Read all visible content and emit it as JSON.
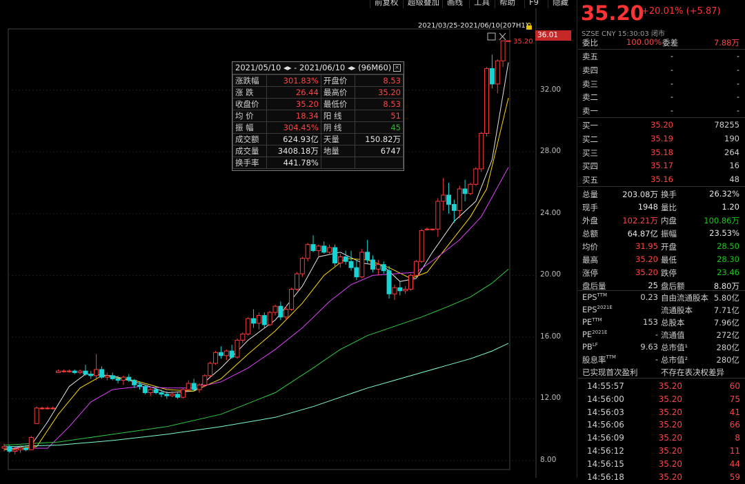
{
  "toolbar": {
    "buttons": [
      "前复权",
      "超级叠加",
      "画线",
      "工具",
      "帮助",
      "F9",
      "隐藏"
    ]
  },
  "chart": {
    "range_label": "2021/03/25-2021/06/10(207H1)",
    "current_price_tag": "36.01",
    "last_price_label": "35.20",
    "y_ticks": [
      "32.00",
      "28.00",
      "24.00",
      "20.00",
      "16.00",
      "12.00",
      "8.00"
    ],
    "colors": {
      "up": "#ff3b3b",
      "down": "#19d3d3",
      "ma5": "#e6e6e6",
      "ma10": "#ffd700",
      "ma20": "#e040fb",
      "ma60": "#2ecc40",
      "ma120": "#7fffd4"
    }
  },
  "chart_data": {
    "type": "candlestick",
    "y_range": [
      8.0,
      36.01
    ],
    "y_ticks": [
      8,
      12,
      16,
      20,
      24,
      28,
      32
    ],
    "candles": [
      [
        8.8,
        9.1,
        8.6,
        8.9
      ],
      [
        8.9,
        9.0,
        8.5,
        8.6
      ],
      [
        8.6,
        8.9,
        8.4,
        8.7
      ],
      [
        8.7,
        9.0,
        8.5,
        8.8
      ],
      [
        8.8,
        9.0,
        8.6,
        8.7
      ],
      [
        8.7,
        9.6,
        8.7,
        9.5
      ],
      [
        10.4,
        11.5,
        10.4,
        11.4
      ],
      [
        11.4,
        11.5,
        11.3,
        11.4
      ],
      [
        11.4,
        11.5,
        11.3,
        11.4
      ],
      [
        11.4,
        11.5,
        11.3,
        11.4
      ],
      [
        13.7,
        13.9,
        13.7,
        13.8
      ],
      [
        13.8,
        13.9,
        13.7,
        13.8
      ],
      [
        13.8,
        13.9,
        13.7,
        13.8
      ],
      [
        13.8,
        13.9,
        13.6,
        13.7
      ],
      [
        13.7,
        13.9,
        13.6,
        13.8
      ],
      [
        13.8,
        14.2,
        13.5,
        13.6
      ],
      [
        13.6,
        13.8,
        13.3,
        13.5
      ],
      [
        13.5,
        14.9,
        13.2,
        13.9
      ],
      [
        13.9,
        14.1,
        13.3,
        13.4
      ],
      [
        13.4,
        13.7,
        13.2,
        13.5
      ],
      [
        13.5,
        13.7,
        13.2,
        13.3
      ],
      [
        13.3,
        13.5,
        13.0,
        13.2
      ],
      [
        13.2,
        13.5,
        12.9,
        13.4
      ],
      [
        13.4,
        13.6,
        13.1,
        13.2
      ],
      [
        13.2,
        13.3,
        12.7,
        12.9
      ],
      [
        12.9,
        13.1,
        12.6,
        12.8
      ],
      [
        12.8,
        12.9,
        12.3,
        12.4
      ],
      [
        12.4,
        12.7,
        12.2,
        12.6
      ],
      [
        12.6,
        12.8,
        12.3,
        12.4
      ],
      [
        12.4,
        12.6,
        12.1,
        12.3
      ],
      [
        12.3,
        12.5,
        12.0,
        12.2
      ],
      [
        12.2,
        12.5,
        12.1,
        12.3
      ],
      [
        12.3,
        12.4,
        12.0,
        12.1
      ],
      [
        12.1,
        12.7,
        12.0,
        12.6
      ],
      [
        12.6,
        13.2,
        12.5,
        13.0
      ],
      [
        13.0,
        13.3,
        12.5,
        12.6
      ],
      [
        12.6,
        13.0,
        12.4,
        12.9
      ],
      [
        12.9,
        13.6,
        12.8,
        13.5
      ],
      [
        13.5,
        14.4,
        13.4,
        14.3
      ],
      [
        14.3,
        15.1,
        14.2,
        15.0
      ],
      [
        15.0,
        15.4,
        14.6,
        14.8
      ],
      [
        14.8,
        15.2,
        14.5,
        15.1
      ],
      [
        15.1,
        15.5,
        14.6,
        14.7
      ],
      [
        14.7,
        15.9,
        14.6,
        15.8
      ],
      [
        15.8,
        16.3,
        15.6,
        16.2
      ],
      [
        16.2,
        17.3,
        16.1,
        17.2
      ],
      [
        17.2,
        17.8,
        16.6,
        16.9
      ],
      [
        16.9,
        17.6,
        16.5,
        17.4
      ],
      [
        17.4,
        17.6,
        16.6,
        16.8
      ],
      [
        16.8,
        17.7,
        16.7,
        17.6
      ],
      [
        17.6,
        18.1,
        17.4,
        18.0
      ],
      [
        18.0,
        18.3,
        17.1,
        17.3
      ],
      [
        17.3,
        18.0,
        17.1,
        17.8
      ],
      [
        17.8,
        19.2,
        17.7,
        19.1
      ],
      [
        19.1,
        20.2,
        19.0,
        20.1
      ],
      [
        20.1,
        21.2,
        19.9,
        21.1
      ],
      [
        21.1,
        22.1,
        20.9,
        22.0
      ],
      [
        22.0,
        22.6,
        21.5,
        21.6
      ],
      [
        21.6,
        22.0,
        21.2,
        21.9
      ],
      [
        21.9,
        22.2,
        21.4,
        21.5
      ],
      [
        21.5,
        22.0,
        21.3,
        21.8
      ],
      [
        21.8,
        22.0,
        20.6,
        20.8
      ],
      [
        20.8,
        21.4,
        20.5,
        21.2
      ],
      [
        21.2,
        21.6,
        20.7,
        20.9
      ],
      [
        20.9,
        21.6,
        20.3,
        20.5
      ],
      [
        20.5,
        21.0,
        19.7,
        19.9
      ],
      [
        19.9,
        21.7,
        19.8,
        21.5
      ],
      [
        21.5,
        22.3,
        20.8,
        21.0
      ],
      [
        21.0,
        21.3,
        20.2,
        20.4
      ],
      [
        20.4,
        21.0,
        20.0,
        20.7
      ],
      [
        20.7,
        20.9,
        20.1,
        20.3
      ],
      [
        20.3,
        20.6,
        18.5,
        18.8
      ],
      [
        18.8,
        19.4,
        18.4,
        19.2
      ],
      [
        19.2,
        19.6,
        18.7,
        19.0
      ],
      [
        19.0,
        19.3,
        18.8,
        19.1
      ],
      [
        19.1,
        20.1,
        19.0,
        20.0
      ],
      [
        20.0,
        21.0,
        19.8,
        20.9
      ],
      [
        20.9,
        23.0,
        20.8,
        22.9
      ],
      [
        23.0,
        23.1,
        22.9,
        23.0
      ],
      [
        23.0,
        23.0,
        22.9,
        23.0
      ],
      [
        23.0,
        25.0,
        22.5,
        24.8
      ],
      [
        24.8,
        26.3,
        24.2,
        25.2
      ],
      [
        25.2,
        26.0,
        24.0,
        24.6
      ],
      [
        24.6,
        24.9,
        23.4,
        24.2
      ],
      [
        24.2,
        25.8,
        23.7,
        25.6
      ],
      [
        25.6,
        26.2,
        24.8,
        25.3
      ],
      [
        25.3,
        26.0,
        25.2,
        25.9
      ],
      [
        25.9,
        27.0,
        25.8,
        26.9
      ],
      [
        26.9,
        29.3,
        26.7,
        29.2
      ],
      [
        29.2,
        33.5,
        29.0,
        33.4
      ],
      [
        33.4,
        34.3,
        32.1,
        32.4
      ],
      [
        32.4,
        34.0,
        31.8,
        33.9
      ],
      [
        33.9,
        35.2,
        33.5,
        35.2
      ],
      [
        35.2,
        35.2,
        35.2,
        35.2
      ]
    ],
    "ma": {
      "MA5": [
        [
          0,
          8.7
        ],
        [
          5,
          9.0
        ],
        [
          8,
          10.5
        ],
        [
          12,
          12.8
        ],
        [
          15,
          13.6
        ],
        [
          20,
          13.5
        ],
        [
          26,
          12.9
        ],
        [
          30,
          12.4
        ],
        [
          35,
          12.5
        ],
        [
          40,
          14.0
        ],
        [
          45,
          15.8
        ],
        [
          50,
          17.1
        ],
        [
          55,
          19.3
        ],
        [
          58,
          21.2
        ],
        [
          62,
          21.5
        ],
        [
          66,
          20.8
        ],
        [
          70,
          20.6
        ],
        [
          73,
          19.6
        ],
        [
          76,
          19.8
        ],
        [
          79,
          21.5
        ],
        [
          83,
          23.5
        ],
        [
          87,
          24.8
        ],
        [
          90,
          27.5
        ],
        [
          93,
          33.8
        ]
      ],
      "MA10": [
        [
          0,
          8.7
        ],
        [
          6,
          8.9
        ],
        [
          10,
          11.0
        ],
        [
          14,
          12.7
        ],
        [
          18,
          13.5
        ],
        [
          24,
          13.2
        ],
        [
          30,
          12.6
        ],
        [
          35,
          12.5
        ],
        [
          40,
          13.3
        ],
        [
          45,
          14.9
        ],
        [
          50,
          16.4
        ],
        [
          55,
          18.2
        ],
        [
          59,
          20.0
        ],
        [
          63,
          21.1
        ],
        [
          67,
          21.0
        ],
        [
          71,
          20.5
        ],
        [
          75,
          19.8
        ],
        [
          78,
          20.2
        ],
        [
          82,
          22.0
        ],
        [
          86,
          23.8
        ],
        [
          89,
          25.6
        ],
        [
          93,
          31.5
        ]
      ],
      "MA20": [
        [
          0,
          8.8
        ],
        [
          8,
          8.8
        ],
        [
          12,
          10.2
        ],
        [
          16,
          11.8
        ],
        [
          20,
          12.6
        ],
        [
          25,
          12.8
        ],
        [
          30,
          12.7
        ],
        [
          35,
          12.7
        ],
        [
          40,
          13.1
        ],
        [
          45,
          14.0
        ],
        [
          50,
          15.2
        ],
        [
          55,
          16.6
        ],
        [
          60,
          18.3
        ],
        [
          64,
          19.4
        ],
        [
          68,
          20.0
        ],
        [
          72,
          20.1
        ],
        [
          76,
          20.2
        ],
        [
          80,
          21.2
        ],
        [
          84,
          22.3
        ],
        [
          88,
          23.8
        ],
        [
          93,
          27.0
        ]
      ],
      "MA60": [
        [
          0,
          9.0
        ],
        [
          10,
          9.2
        ],
        [
          20,
          9.7
        ],
        [
          30,
          10.2
        ],
        [
          40,
          11.0
        ],
        [
          50,
          12.4
        ],
        [
          57,
          14.0
        ],
        [
          62,
          15.2
        ],
        [
          67,
          16.1
        ],
        [
          72,
          16.7
        ],
        [
          77,
          17.3
        ],
        [
          82,
          18.0
        ],
        [
          86,
          18.6
        ],
        [
          90,
          19.5
        ],
        [
          93,
          20.4
        ]
      ],
      "MA120": [
        [
          0,
          8.9
        ],
        [
          10,
          9.0
        ],
        [
          20,
          9.3
        ],
        [
          30,
          9.7
        ],
        [
          40,
          10.2
        ],
        [
          50,
          10.8
        ],
        [
          57,
          11.5
        ],
        [
          62,
          12.1
        ],
        [
          67,
          12.7
        ],
        [
          72,
          13.2
        ],
        [
          77,
          13.7
        ],
        [
          82,
          14.2
        ],
        [
          86,
          14.6
        ],
        [
          90,
          15.1
        ],
        [
          93,
          15.6
        ]
      ]
    }
  },
  "stats_popup": {
    "header": "2021/05/10 ◂▸ - 2021/06/10 ◂▸ (96M60)",
    "rows": [
      {
        "l1": "涨跌幅",
        "v1": "301.83%",
        "c1": "red",
        "l2": "开盘价",
        "v2": "8.53",
        "c2": "red"
      },
      {
        "l1": "涨 跌",
        "v1": "26.44",
        "c1": "red",
        "l2": "最高价",
        "v2": "35.20",
        "c2": "red"
      },
      {
        "l1": "收盘价",
        "v1": "35.20",
        "c1": "red",
        "l2": "最低价",
        "v2": "8.53",
        "c2": "red"
      },
      {
        "l1": "均 价",
        "v1": "18.34",
        "c1": "red",
        "l2": "阳 线",
        "v2": "51",
        "c2": "red"
      },
      {
        "l1": "振 幅",
        "v1": "304.45%",
        "c1": "red",
        "l2": "阴 线",
        "v2": "45",
        "c2": "green"
      },
      {
        "l1": "成交额",
        "v1": "624.93亿",
        "c1": "white",
        "l2": "天量",
        "v2": "150.82万",
        "c2": "white"
      },
      {
        "l1": "成交量",
        "v1": "3408.18万",
        "c1": "white",
        "l2": "地量",
        "v2": "6747",
        "c2": "white"
      },
      {
        "l1": "换手率",
        "v1": "441.78%",
        "c1": "white",
        "l2": "",
        "v2": "",
        "c2": "white"
      }
    ]
  },
  "quote": {
    "price": "35.20",
    "change": "+20.01% (+5.87)",
    "meta": "SZSE CNY 15:30:03 闭市",
    "wei": {
      "l1": "委比",
      "v1": "100.00%",
      "l2": "委差",
      "v2": "7.88万"
    },
    "asks": [
      {
        "label": "卖五",
        "price": "-",
        "vol": "-"
      },
      {
        "label": "卖四",
        "price": "-",
        "vol": "-"
      },
      {
        "label": "卖三",
        "price": "-",
        "vol": "-"
      },
      {
        "label": "卖二",
        "price": "-",
        "vol": "-"
      },
      {
        "label": "卖一",
        "price": "-",
        "vol": "-"
      }
    ],
    "bids": [
      {
        "label": "买一",
        "price": "35.20",
        "vol": "78255"
      },
      {
        "label": "买二",
        "price": "35.19",
        "vol": "190"
      },
      {
        "label": "买三",
        "price": "35.18",
        "vol": "264"
      },
      {
        "label": "买四",
        "price": "35.17",
        "vol": "16"
      },
      {
        "label": "买五",
        "price": "35.16",
        "vol": "48"
      }
    ],
    "stats": [
      {
        "l1": "总量",
        "v1": "203.08万",
        "c1": "white",
        "l2": "换手",
        "v2": "26.32%",
        "c2": "white"
      },
      {
        "l1": "现手",
        "v1": "1948",
        "c1": "white",
        "l2": "量比",
        "v2": "1.20",
        "c2": "white"
      },
      {
        "l1": "外盘",
        "v1": "102.21万",
        "c1": "red",
        "l2": "内盘",
        "v2": "100.86万",
        "c2": "green"
      },
      {
        "l1": "总额",
        "v1": "64.87亿",
        "c1": "white",
        "l2": "振幅",
        "v2": "23.53%",
        "c2": "white"
      },
      {
        "l1": "均价",
        "v1": "31.95",
        "c1": "red",
        "l2": "开盘",
        "v2": "28.50",
        "c2": "green"
      },
      {
        "l1": "最高",
        "v1": "35.20",
        "c1": "red",
        "l2": "最低",
        "v2": "28.30",
        "c2": "green"
      },
      {
        "l1": "涨停",
        "v1": "35.20",
        "c1": "red",
        "l2": "跌停",
        "v2": "23.46",
        "c2": "green"
      },
      {
        "l1": "盘后量",
        "v1": "25",
        "c1": "white",
        "l2": "盘后额",
        "v2": "8.80万",
        "c2": "white"
      }
    ],
    "fundamentals": [
      {
        "l1": "EPS",
        "s1": "TTM",
        "v1": "0.23",
        "l2": "自由流通股本",
        "v2": "5.80亿"
      },
      {
        "l1": "EPS",
        "s1": "2021E",
        "v1": "",
        "l2": "流通股本",
        "v2": "7.71亿"
      },
      {
        "l1": "PE",
        "s1": "TTM",
        "v1": "153",
        "l2": "总股本",
        "v2": "7.96亿"
      },
      {
        "l1": "PE",
        "s1": "2021E",
        "v1": "-",
        "l2": "流通值",
        "v2": "272亿"
      },
      {
        "l1": "PB",
        "s1": "LF",
        "v1": "9.63",
        "l2": "总市值¹",
        "v2": "280亿"
      },
      {
        "l1": "股息率",
        "s1": "TTM",
        "v1": "-",
        "l2": "总市值²",
        "v2": "280亿"
      }
    ],
    "notes": {
      "left": "已实现首次盈利",
      "right": "不存在表决权差异"
    },
    "ticks": [
      {
        "time": "14:55:57",
        "price": "35.20",
        "vol": "60"
      },
      {
        "time": "14:56:00",
        "price": "35.20",
        "vol": "75"
      },
      {
        "time": "14:56:03",
        "price": "35.20",
        "vol": "41"
      },
      {
        "time": "14:56:06",
        "price": "35.20",
        "vol": "66"
      },
      {
        "time": "14:56:09",
        "price": "35.20",
        "vol": "8"
      },
      {
        "time": "14:56:12",
        "price": "35.20",
        "vol": "11"
      },
      {
        "time": "14:56:15",
        "price": "35.20",
        "vol": "44"
      },
      {
        "time": "14:56:18",
        "price": "35.20",
        "vol": "59"
      }
    ]
  }
}
